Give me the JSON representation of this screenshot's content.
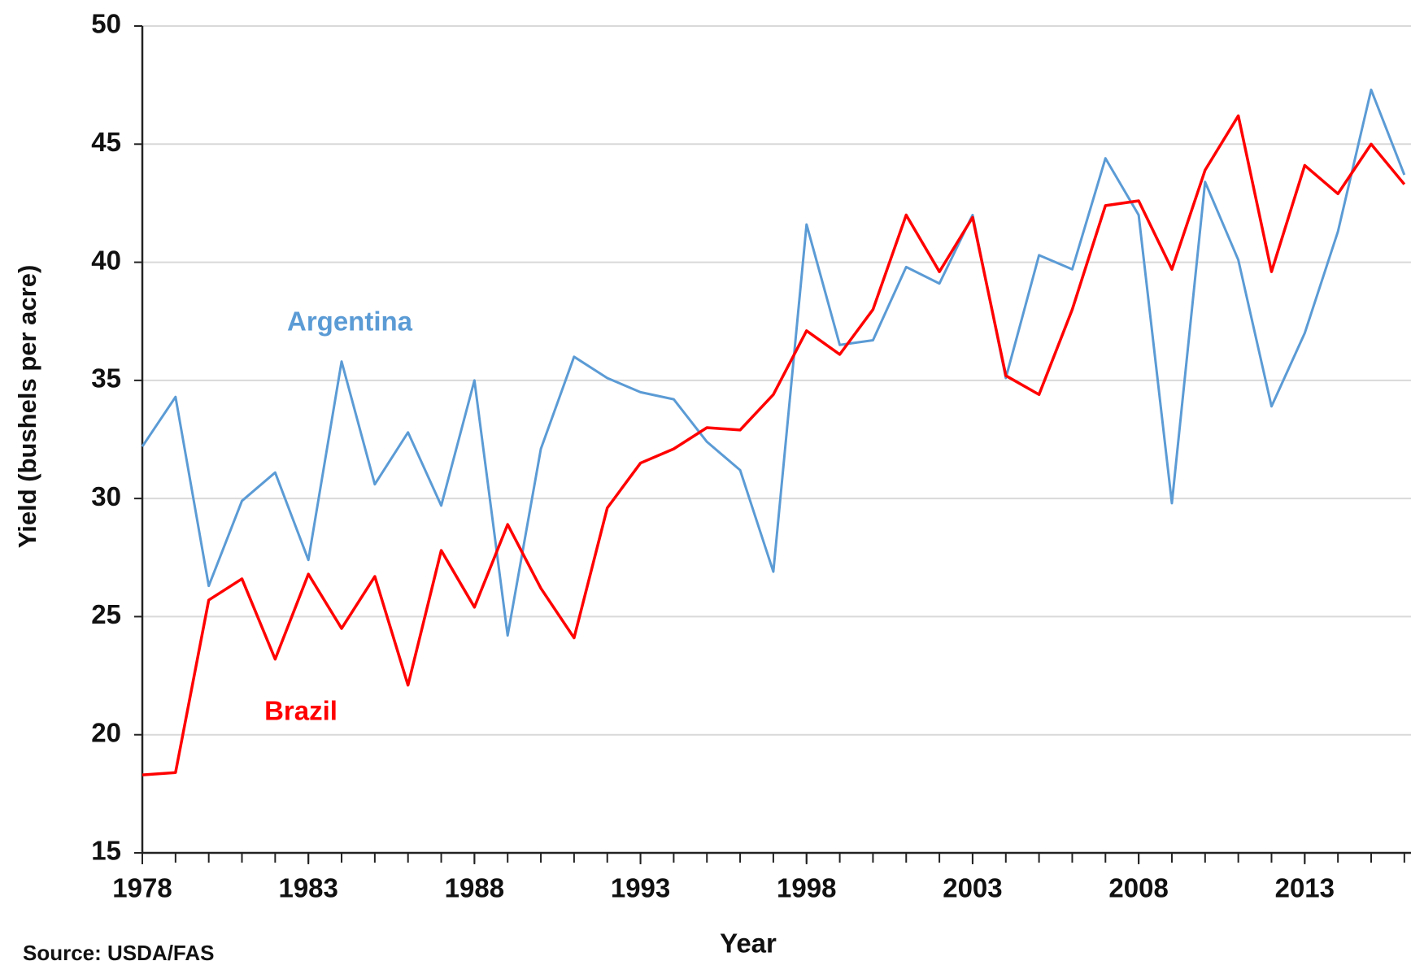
{
  "chart_data": {
    "type": "line",
    "x": [
      1978,
      1979,
      1980,
      1981,
      1982,
      1983,
      1984,
      1985,
      1986,
      1987,
      1988,
      1989,
      1990,
      1991,
      1992,
      1993,
      1994,
      1995,
      1996,
      1997,
      1998,
      1999,
      2000,
      2001,
      2002,
      2003,
      2004,
      2005,
      2006,
      2007,
      2008,
      2009,
      2010,
      2011,
      2012,
      2013,
      2014,
      2015,
      2016
    ],
    "series": [
      {
        "name": "Argentina",
        "color": "#5b9bd5",
        "values": [
          32.2,
          34.3,
          26.3,
          29.9,
          31.1,
          27.4,
          35.8,
          30.6,
          32.8,
          29.7,
          35.0,
          24.2,
          32.1,
          36.0,
          35.1,
          34.5,
          34.2,
          32.4,
          31.2,
          26.9,
          41.6,
          36.5,
          36.7,
          39.8,
          39.1,
          42.0,
          35.1,
          40.3,
          39.7,
          44.4,
          42.0,
          29.8,
          43.4,
          40.1,
          33.9,
          37.0,
          41.3,
          47.3,
          43.7
        ]
      },
      {
        "name": "Brazil",
        "color": "#ff0000",
        "values": [
          18.3,
          18.4,
          25.7,
          26.6,
          23.2,
          26.8,
          24.5,
          26.7,
          22.1,
          27.8,
          25.4,
          28.9,
          26.2,
          24.1,
          29.6,
          31.5,
          32.1,
          33.0,
          32.9,
          34.4,
          37.1,
          36.1,
          38.0,
          42.0,
          39.6,
          41.9,
          35.2,
          34.4,
          38.0,
          42.4,
          42.6,
          39.7,
          43.9,
          46.2,
          39.6,
          44.1,
          42.9,
          45.0,
          43.3
        ]
      }
    ],
    "xlabel": "Year",
    "ylabel": "Yield (bushels per acre)",
    "source": "Source: USDA/FAS",
    "xlim": [
      1978,
      2016.2
    ],
    "xticks": [
      1978,
      1983,
      1988,
      1993,
      1998,
      2003,
      2008,
      2013
    ],
    "ylim": [
      15,
      50
    ],
    "yticks": [
      15,
      20,
      25,
      30,
      35,
      40,
      45,
      50
    ],
    "grid": true
  }
}
